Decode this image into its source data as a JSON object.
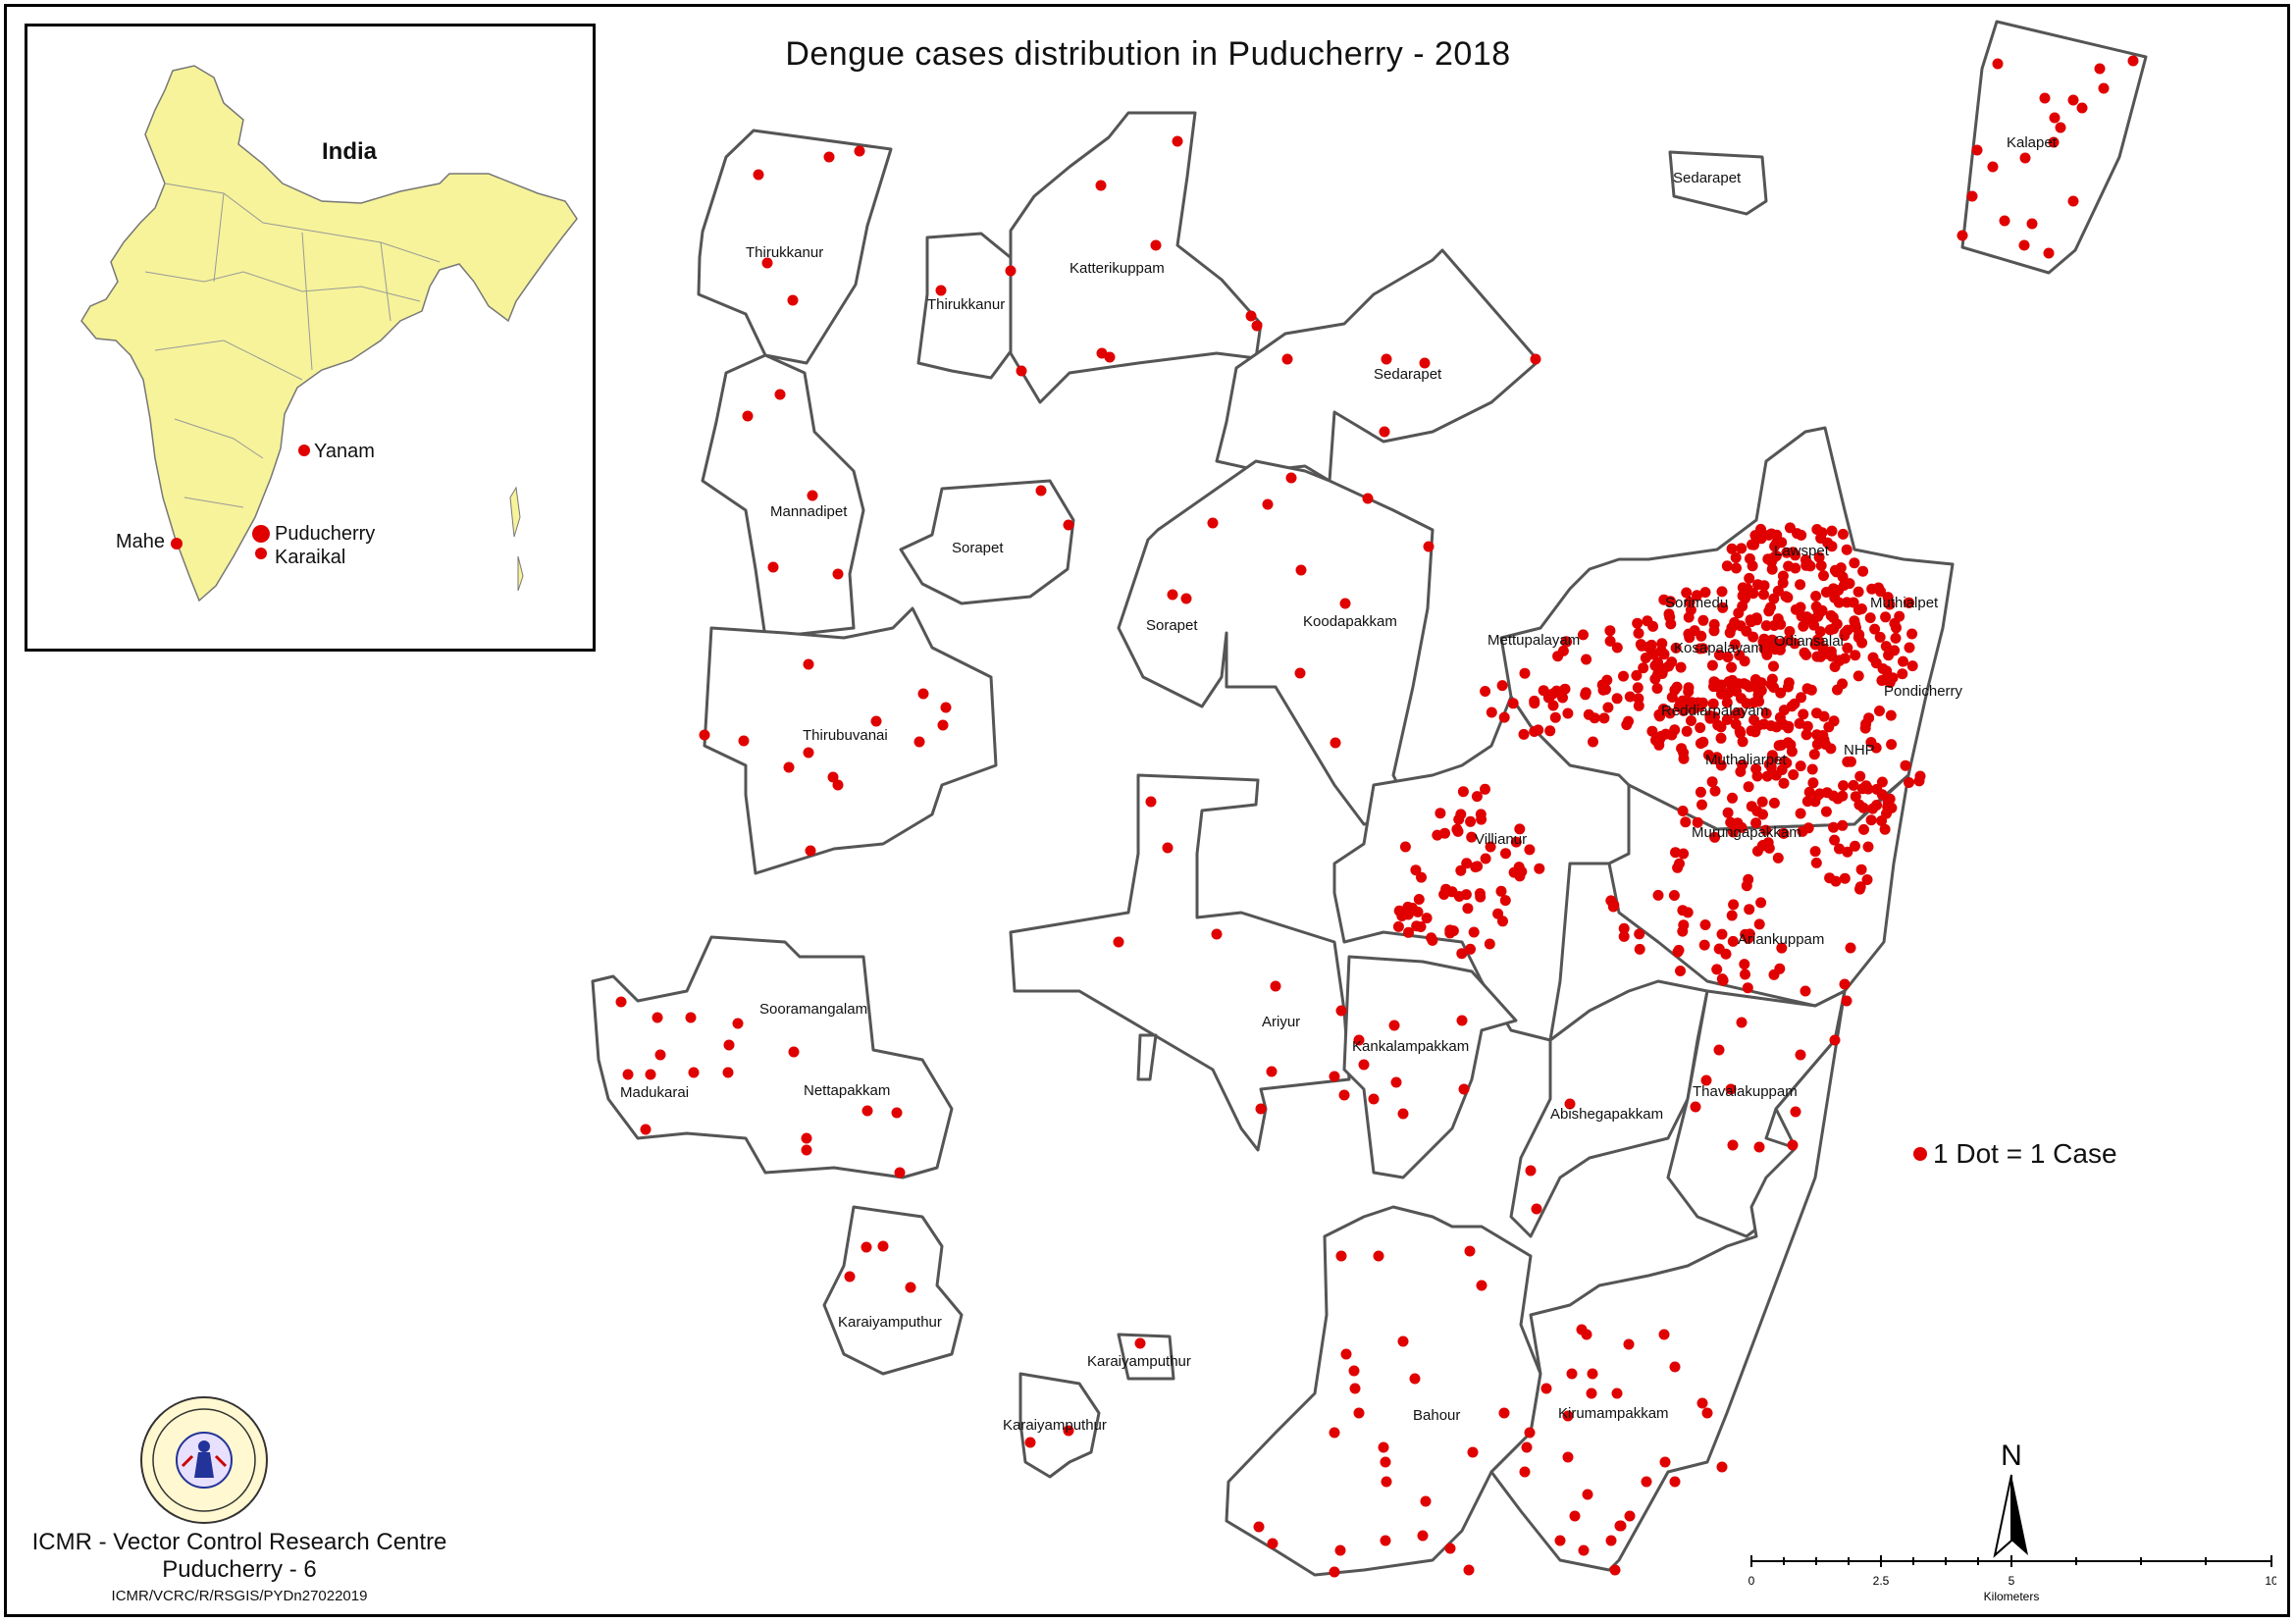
{
  "title": "Dengue cases distribution in Puducherry - 2018",
  "inset": {
    "country_label": "India",
    "places": [
      {
        "name": "Yanam"
      },
      {
        "name": "Puducherry"
      },
      {
        "name": "Karaikal"
      },
      {
        "name": "Mahe"
      }
    ]
  },
  "regions": [
    "Thirukkanur",
    "Thirukkanur",
    "Katterikuppam",
    "Sedarapet",
    "Sedarapet",
    "Kalapet",
    "Mannadipet",
    "Sorapet",
    "Sorapet",
    "Koodapakkam",
    "Thirubuvanai",
    "Lawspet",
    "Sorimedu",
    "Mettupalayam",
    "Muthialpet",
    "Kosapalayam",
    "Odiansalai",
    "Pondicherry",
    "Reddiarpalayam",
    "Muthaliarpet",
    "NHP",
    "Villianur",
    "Murungapakkam",
    "Ariankuppam",
    "Ariyur",
    "Kankalampakkam",
    "Sooramangalam",
    "Madukarai",
    "Nettapakkam",
    "Abishegapakkam",
    "Thavalakuppam",
    "Karaiyamputhur",
    "Karaiyamputhur",
    "Karaiyamputhur",
    "Bahour",
    "Kirumampakkam"
  ],
  "legend": {
    "label": "1 Dot = 1 Case",
    "dot_color": "#e00000"
  },
  "scale": {
    "ticks": [
      "0",
      "2.5",
      "5",
      "10"
    ],
    "unit": "Kilometers"
  },
  "north": "N",
  "org": {
    "name": "ICMR - Vector Control Research Centre",
    "city": "Puducherry - 6",
    "code": "ICMR/VCRC/R/RSGIS/PYDn27022019"
  },
  "colors": {
    "boundary": "#555555",
    "india_fill": "#f6f39a",
    "dot": "#e00000"
  }
}
